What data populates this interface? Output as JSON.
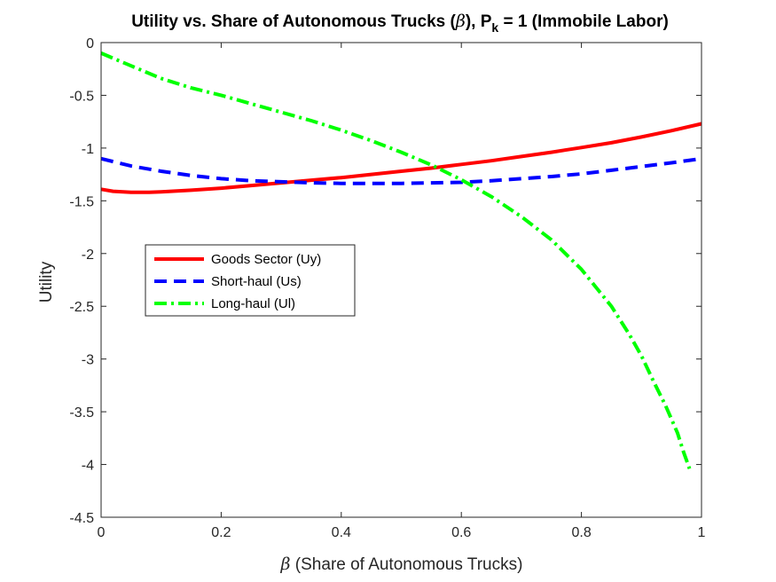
{
  "chart_data": {
    "type": "line",
    "title": {
      "prefix": "Utility vs. Share of Autonomous Trucks (",
      "symbol": "β",
      "middle": "), P",
      "subscript": "k",
      "suffix": " = 1 (Immobile Labor)"
    },
    "xlabel": {
      "symbol": "β",
      "text": " (Share of Autonomous Trucks)"
    },
    "ylabel": "Utility",
    "xlim": [
      0,
      1
    ],
    "ylim": [
      -4.5,
      0
    ],
    "xticks": [
      "0",
      "0.2",
      "0.4",
      "0.6",
      "0.8",
      "1"
    ],
    "yticks": [
      "0",
      "-0.5",
      "-1",
      "-1.5",
      "-2",
      "-2.5",
      "-3",
      "-3.5",
      "-4",
      "-4.5"
    ],
    "grid": true,
    "legend_position": "center-left",
    "series": [
      {
        "name": "Goods Sector (Uy)",
        "color": "#ff0000",
        "style": "solid",
        "x": [
          0,
          0.02,
          0.05,
          0.08,
          0.1,
          0.15,
          0.2,
          0.25,
          0.3,
          0.35,
          0.4,
          0.45,
          0.5,
          0.55,
          0.6,
          0.65,
          0.7,
          0.75,
          0.8,
          0.85,
          0.9,
          0.95,
          1.0
        ],
        "y": [
          -1.39,
          -1.41,
          -1.42,
          -1.42,
          -1.415,
          -1.4,
          -1.38,
          -1.355,
          -1.33,
          -1.305,
          -1.28,
          -1.25,
          -1.22,
          -1.19,
          -1.155,
          -1.12,
          -1.08,
          -1.04,
          -0.995,
          -0.95,
          -0.895,
          -0.835,
          -0.77
        ]
      },
      {
        "name": "Short-haul (Us)",
        "color": "#0000ff",
        "style": "dashed",
        "x": [
          0,
          0.05,
          0.1,
          0.15,
          0.2,
          0.25,
          0.3,
          0.35,
          0.4,
          0.45,
          0.5,
          0.55,
          0.6,
          0.65,
          0.7,
          0.75,
          0.8,
          0.85,
          0.9,
          0.95,
          1.0
        ],
        "y": [
          -1.1,
          -1.17,
          -1.22,
          -1.26,
          -1.29,
          -1.31,
          -1.32,
          -1.33,
          -1.335,
          -1.335,
          -1.335,
          -1.33,
          -1.325,
          -1.31,
          -1.29,
          -1.27,
          -1.245,
          -1.21,
          -1.175,
          -1.14,
          -1.1
        ]
      },
      {
        "name": "Long-haul (Ul)",
        "color": "#00ff00",
        "style": "dashdot",
        "x": [
          0,
          0.05,
          0.1,
          0.15,
          0.2,
          0.25,
          0.3,
          0.35,
          0.4,
          0.45,
          0.5,
          0.55,
          0.6,
          0.65,
          0.7,
          0.75,
          0.8,
          0.85,
          0.88,
          0.9,
          0.92,
          0.94,
          0.96,
          0.97,
          0.98
        ],
        "y": [
          -0.1,
          -0.22,
          -0.34,
          -0.43,
          -0.5,
          -0.58,
          -0.66,
          -0.74,
          -0.83,
          -0.93,
          -1.04,
          -1.16,
          -1.3,
          -1.46,
          -1.65,
          -1.87,
          -2.15,
          -2.5,
          -2.77,
          -2.97,
          -3.21,
          -3.44,
          -3.7,
          -3.88,
          -4.04
        ]
      }
    ]
  }
}
